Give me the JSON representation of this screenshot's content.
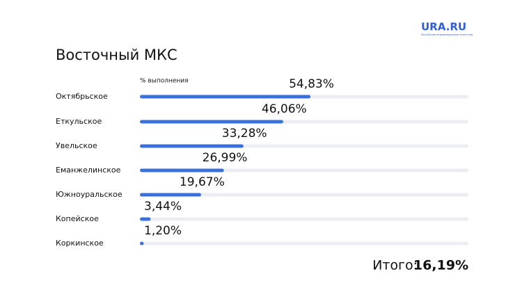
{
  "chart_data": {
    "type": "progress-bar",
    "brand": "URA.RU",
    "brand_tagline": "Российское информационное агентство",
    "title": "Восточный МКС",
    "axis_label": "% выполнения",
    "categories": [
      "Октябрьское",
      "Еткульское",
      "Увельское",
      "Еманжелинское",
      "Южноуральское",
      "Копейское",
      "Коркинское"
    ],
    "values": [
      54.83,
      46.06,
      33.28,
      26.99,
      19.67,
      3.44,
      1.2
    ],
    "value_labels": [
      "54,83%",
      "46,06%",
      "33,28%",
      "26,99%",
      "19,67%",
      "3,44%",
      "1,20%"
    ],
    "xlim": [
      0,
      100
    ],
    "color": "#3b6fd9",
    "track_color": "#eceef3",
    "total_label": "Итого:",
    "total_value_label": "16,19%"
  }
}
